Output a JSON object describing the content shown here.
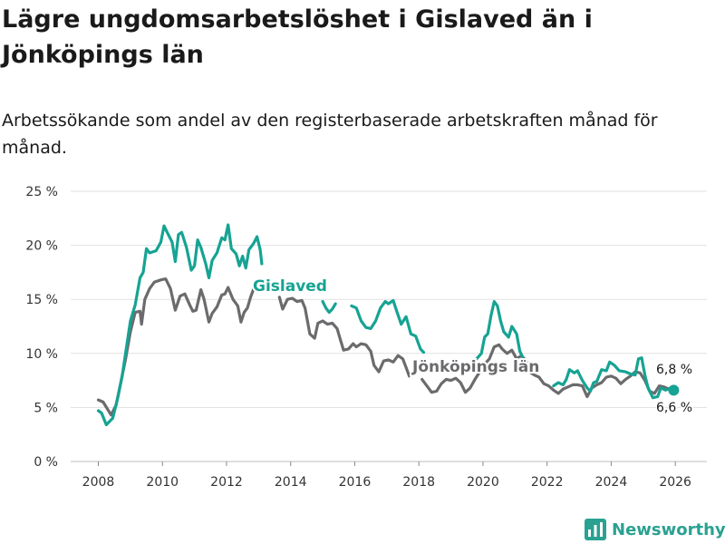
{
  "title": "Lägre ungdomsarbetslöshet i Gislaved än i Jönköpings län",
  "subtitle": "Arbetssökande som andel av den registerbaserade arbetskraften månad för månad.",
  "brand": "Newsworthy",
  "colors": {
    "gislaved": "#16a393",
    "jonkoping": "#6b6b6e",
    "grid": "#e1e1e1",
    "brand": "#2aa191"
  },
  "chart_data": {
    "type": "line",
    "title": "Lägre ungdomsarbetslöshet i Gislaved än i Jönköpings län",
    "xlabel": "",
    "ylabel": "",
    "xlim": [
      2007.5,
      2026.6
    ],
    "ylim": [
      0,
      25
    ],
    "yticks": [
      0,
      5,
      10,
      15,
      20,
      25
    ],
    "ytick_labels": [
      "0 %",
      "5 %",
      "10 %",
      "15 %",
      "20 %",
      "25 %"
    ],
    "xticks": [
      2008,
      2010,
      2012,
      2014,
      2016,
      2018,
      2020,
      2022,
      2024,
      2026
    ],
    "xtick_labels": [
      "2008",
      "2010",
      "2012",
      "2014",
      "2016",
      "2018",
      "2020",
      "2022",
      "2024",
      "2026"
    ],
    "grid": true,
    "series": [
      {
        "name": "Gislaved",
        "label": "Gislaved",
        "end_label": "6,6 %",
        "points": [
          [
            2008.0,
            4.7
          ],
          [
            2008.1,
            4.5
          ],
          [
            2008.25,
            3.4
          ],
          [
            2008.45,
            4.0
          ],
          [
            2008.6,
            5.8
          ],
          [
            2008.75,
            8.0
          ],
          [
            2008.9,
            11.0
          ],
          [
            2009.0,
            13.0
          ],
          [
            2009.15,
            14.5
          ],
          [
            2009.3,
            17.0
          ],
          [
            2009.4,
            17.5
          ],
          [
            2009.5,
            19.7
          ],
          [
            2009.6,
            19.3
          ],
          [
            2009.8,
            19.5
          ],
          [
            2009.95,
            20.3
          ],
          [
            2010.05,
            21.8
          ],
          [
            2010.15,
            21.2
          ],
          [
            2010.3,
            20.3
          ],
          [
            2010.4,
            18.5
          ],
          [
            2010.5,
            21.0
          ],
          [
            2010.6,
            21.2
          ],
          [
            2010.75,
            19.8
          ],
          [
            2010.9,
            17.7
          ],
          [
            2011.0,
            18.1
          ],
          [
            2011.1,
            20.5
          ],
          [
            2011.2,
            19.8
          ],
          [
            2011.35,
            18.3
          ],
          [
            2011.45,
            17.0
          ],
          [
            2011.55,
            18.6
          ],
          [
            2011.7,
            19.3
          ],
          [
            2011.85,
            20.7
          ],
          [
            2011.95,
            20.5
          ],
          [
            2012.05,
            21.9
          ],
          [
            2012.15,
            19.7
          ],
          [
            2012.3,
            19.2
          ],
          [
            2012.4,
            18.1
          ],
          [
            2012.5,
            19.0
          ],
          [
            2012.6,
            17.9
          ],
          [
            2012.7,
            19.6
          ],
          [
            2012.85,
            20.2
          ],
          [
            2012.95,
            20.8
          ],
          [
            2013.05,
            19.6
          ],
          [
            2013.1,
            18.3
          ]
        ],
        "points_b": [
          [
            2015.9,
            14.4
          ],
          [
            2016.05,
            14.2
          ],
          [
            2016.2,
            13.0
          ],
          [
            2016.35,
            12.4
          ],
          [
            2016.5,
            12.3
          ],
          [
            2016.65,
            13.0
          ],
          [
            2016.8,
            14.2
          ],
          [
            2016.95,
            14.8
          ],
          [
            2017.05,
            14.6
          ],
          [
            2017.2,
            14.9
          ],
          [
            2017.3,
            14.0
          ],
          [
            2017.45,
            12.7
          ],
          [
            2017.6,
            13.4
          ],
          [
            2017.75,
            11.8
          ],
          [
            2017.9,
            11.6
          ],
          [
            2018.05,
            10.4
          ],
          [
            2018.15,
            10.1
          ]
        ],
        "points_c": [
          [
            2019.8,
            9.5
          ],
          [
            2019.95,
            10.0
          ],
          [
            2020.05,
            11.5
          ],
          [
            2020.15,
            11.8
          ],
          [
            2020.25,
            13.5
          ],
          [
            2020.35,
            14.8
          ],
          [
            2020.45,
            14.4
          ],
          [
            2020.55,
            13.0
          ],
          [
            2020.65,
            12.0
          ],
          [
            2020.8,
            11.5
          ],
          [
            2020.9,
            12.5
          ],
          [
            2021.05,
            11.8
          ],
          [
            2021.15,
            10.2
          ],
          [
            2021.25,
            9.6
          ]
        ],
        "points_d": [
          [
            2022.2,
            7.0
          ],
          [
            2022.35,
            7.3
          ],
          [
            2022.5,
            7.1
          ],
          [
            2022.6,
            7.6
          ],
          [
            2022.7,
            8.5
          ],
          [
            2022.85,
            8.2
          ],
          [
            2022.95,
            8.4
          ],
          [
            2023.1,
            7.5
          ],
          [
            2023.25,
            6.8
          ],
          [
            2023.35,
            6.5
          ],
          [
            2023.45,
            7.3
          ],
          [
            2023.55,
            7.4
          ],
          [
            2023.7,
            8.5
          ],
          [
            2023.85,
            8.4
          ],
          [
            2023.95,
            9.2
          ],
          [
            2024.1,
            8.9
          ],
          [
            2024.25,
            8.4
          ],
          [
            2024.45,
            8.3
          ],
          [
            2024.6,
            8.1
          ],
          [
            2024.75,
            8.0
          ],
          [
            2024.85,
            9.5
          ],
          [
            2024.95,
            9.6
          ],
          [
            2025.05,
            8.0
          ],
          [
            2025.15,
            6.8
          ],
          [
            2025.3,
            5.9
          ],
          [
            2025.45,
            6.0
          ],
          [
            2025.55,
            6.8
          ],
          [
            2025.7,
            6.6
          ],
          [
            2025.85,
            6.8
          ],
          [
            2025.95,
            6.6
          ]
        ],
        "points_e": [
          [
            2013.15,
            15.5
          ],
          [
            2013.3,
            15.6
          ],
          [
            2014.75,
            15.0
          ],
          [
            2014.85,
            15.4
          ]
        ],
        "points_f": [
          [
            2015.0,
            14.8
          ],
          [
            2015.1,
            14.2
          ],
          [
            2015.2,
            13.8
          ],
          [
            2015.3,
            14.1
          ],
          [
            2015.4,
            14.6
          ]
        ],
        "points_g": [
          [
            2018.3,
            8.1
          ],
          [
            2018.5,
            7.8
          ],
          [
            2018.75,
            8.0
          ]
        ]
      },
      {
        "name": "Jönköpings län",
        "label": "Jönköpings län",
        "end_label": "6,8 %",
        "points": [
          [
            2008.0,
            5.7
          ],
          [
            2008.15,
            5.5
          ],
          [
            2008.4,
            4.3
          ],
          [
            2008.55,
            5.2
          ],
          [
            2008.7,
            7.3
          ],
          [
            2008.85,
            9.5
          ],
          [
            2009.0,
            12.0
          ],
          [
            2009.15,
            13.8
          ],
          [
            2009.3,
            13.9
          ],
          [
            2009.35,
            12.7
          ],
          [
            2009.45,
            15.0
          ],
          [
            2009.6,
            16.0
          ],
          [
            2009.75,
            16.6
          ],
          [
            2009.95,
            16.8
          ],
          [
            2010.1,
            16.9
          ],
          [
            2010.25,
            16.0
          ],
          [
            2010.4,
            14.0
          ],
          [
            2010.55,
            15.3
          ],
          [
            2010.7,
            15.5
          ],
          [
            2010.85,
            14.5
          ],
          [
            2010.95,
            13.9
          ],
          [
            2011.05,
            14.0
          ],
          [
            2011.2,
            15.9
          ],
          [
            2011.3,
            15.0
          ],
          [
            2011.45,
            12.9
          ],
          [
            2011.55,
            13.7
          ],
          [
            2011.7,
            14.3
          ],
          [
            2011.85,
            15.4
          ],
          [
            2011.95,
            15.5
          ],
          [
            2012.05,
            16.1
          ],
          [
            2012.2,
            15.0
          ],
          [
            2012.35,
            14.4
          ],
          [
            2012.45,
            12.9
          ],
          [
            2012.55,
            13.8
          ],
          [
            2012.65,
            14.2
          ],
          [
            2012.75,
            15.2
          ],
          [
            2012.85,
            16.0
          ]
        ],
        "points_b": [
          [
            2013.65,
            15.2
          ],
          [
            2013.75,
            14.1
          ],
          [
            2013.9,
            15.0
          ],
          [
            2014.05,
            15.1
          ],
          [
            2014.2,
            14.8
          ],
          [
            2014.35,
            14.9
          ],
          [
            2014.45,
            14.2
          ],
          [
            2014.6,
            11.8
          ],
          [
            2014.75,
            11.4
          ],
          [
            2014.85,
            12.8
          ],
          [
            2015.0,
            13.0
          ],
          [
            2015.15,
            12.7
          ],
          [
            2015.3,
            12.8
          ],
          [
            2015.45,
            12.3
          ],
          [
            2015.55,
            11.3
          ],
          [
            2015.65,
            10.3
          ],
          [
            2015.8,
            10.4
          ],
          [
            2015.95,
            10.9
          ],
          [
            2016.05,
            10.6
          ],
          [
            2016.2,
            10.9
          ],
          [
            2016.35,
            10.8
          ],
          [
            2016.5,
            10.2
          ],
          [
            2016.6,
            8.9
          ],
          [
            2016.75,
            8.3
          ],
          [
            2016.9,
            9.3
          ],
          [
            2017.05,
            9.4
          ],
          [
            2017.2,
            9.2
          ],
          [
            2017.35,
            9.8
          ],
          [
            2017.5,
            9.5
          ],
          [
            2017.6,
            8.7
          ],
          [
            2017.7,
            7.9
          ],
          [
            2017.85,
            8.3
          ]
        ],
        "points_c": [
          [
            2018.1,
            7.6
          ],
          [
            2018.25,
            7.0
          ],
          [
            2018.4,
            6.4
          ],
          [
            2018.55,
            6.5
          ],
          [
            2018.7,
            7.2
          ],
          [
            2018.85,
            7.6
          ],
          [
            2019.0,
            7.5
          ],
          [
            2019.15,
            7.7
          ],
          [
            2019.3,
            7.3
          ],
          [
            2019.45,
            6.4
          ],
          [
            2019.6,
            6.8
          ],
          [
            2019.75,
            7.6
          ],
          [
            2019.9,
            8.3
          ],
          [
            2020.05,
            9.0
          ],
          [
            2020.2,
            9.5
          ],
          [
            2020.35,
            10.6
          ],
          [
            2020.5,
            10.8
          ],
          [
            2020.6,
            10.4
          ],
          [
            2020.75,
            10.0
          ],
          [
            2020.9,
            10.3
          ],
          [
            2021.05,
            9.5
          ],
          [
            2021.2,
            9.8
          ],
          [
            2021.35,
            9.3
          ],
          [
            2021.45,
            8.3
          ],
          [
            2021.6,
            8.0
          ],
          [
            2021.75,
            7.8
          ],
          [
            2021.9,
            7.2
          ],
          [
            2022.05,
            7.0
          ],
          [
            2022.2,
            6.6
          ],
          [
            2022.35,
            6.3
          ],
          [
            2022.5,
            6.7
          ],
          [
            2022.65,
            6.9
          ],
          [
            2022.8,
            7.1
          ],
          [
            2022.95,
            7.1
          ],
          [
            2023.1,
            7.0
          ],
          [
            2023.25,
            6.0
          ],
          [
            2023.4,
            6.8
          ],
          [
            2023.55,
            7.1
          ],
          [
            2023.7,
            7.3
          ],
          [
            2023.85,
            7.8
          ],
          [
            2024.0,
            7.9
          ],
          [
            2024.15,
            7.7
          ],
          [
            2024.3,
            7.2
          ],
          [
            2024.45,
            7.6
          ],
          [
            2024.6,
            7.9
          ],
          [
            2024.75,
            8.3
          ],
          [
            2024.9,
            8.2
          ],
          [
            2025.05,
            7.5
          ],
          [
            2025.2,
            6.5
          ],
          [
            2025.35,
            6.3
          ],
          [
            2025.5,
            7.0
          ],
          [
            2025.65,
            6.9
          ],
          [
            2025.8,
            6.7
          ],
          [
            2025.95,
            6.8
          ]
        ]
      }
    ]
  }
}
